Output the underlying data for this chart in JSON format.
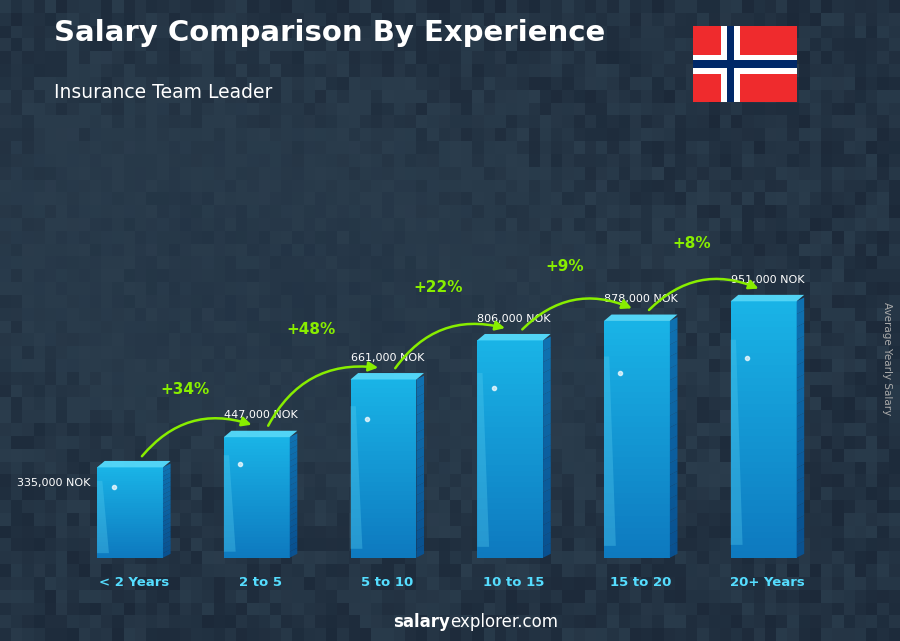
{
  "title": "Salary Comparison By Experience",
  "subtitle": "Insurance Team Leader",
  "categories": [
    "< 2 Years",
    "2 to 5",
    "5 to 10",
    "10 to 15",
    "15 to 20",
    "20+ Years"
  ],
  "values": [
    335000,
    447000,
    661000,
    806000,
    878000,
    951000
  ],
  "pct_labels": [
    "+34%",
    "+48%",
    "+22%",
    "+9%",
    "+8%"
  ],
  "salary_labels": [
    "335,000 NOK",
    "447,000 NOK",
    "661,000 NOK",
    "806,000 NOK",
    "878,000 NOK",
    "951,000 NOK"
  ],
  "bar_face_color": "#1ab5e8",
  "bar_side_color": "#0e7abf",
  "bar_top_color": "#6fddff",
  "bar_shine_color": "#aaeeff",
  "ylabel": "Average Yearly Salary",
  "footer_salary": "salary",
  "footer_explorer": "explorer",
  "footer_com": ".com",
  "bg_color": "#2a3a4a",
  "pct_color": "#88ee00",
  "salary_label_color": "#ffffff",
  "title_color": "#ffffff",
  "subtitle_color": "#ffffff",
  "xlabel_color": "#55ddff",
  "flag_red": "#EF2B2D",
  "flag_blue": "#002868",
  "flag_white": "#ffffff"
}
